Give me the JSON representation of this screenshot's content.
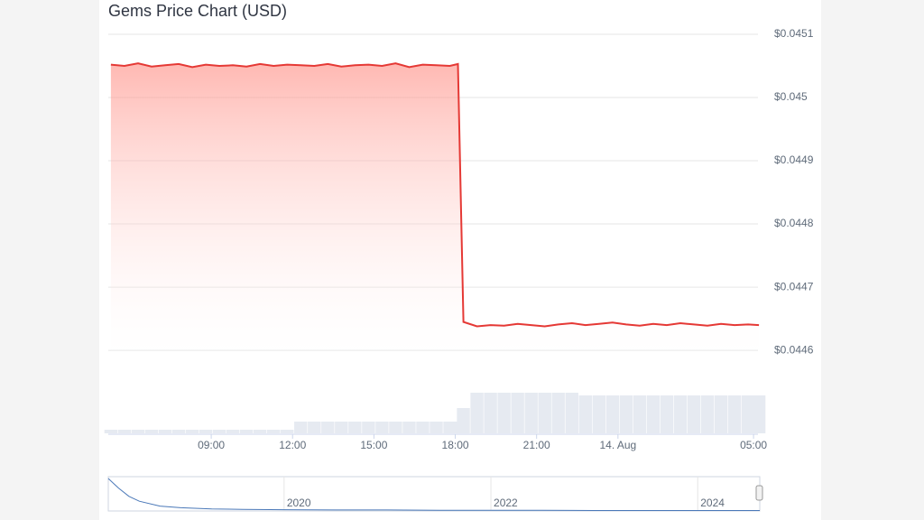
{
  "chart_data": {
    "type": "area",
    "title": "Gems Price Chart (USD)",
    "color": "#e53935",
    "x": [
      5.3,
      5.8,
      6.3,
      6.8,
      7.3,
      7.8,
      8.3,
      8.8,
      9.3,
      9.8,
      10.3,
      10.8,
      11.3,
      11.8,
      12.3,
      12.8,
      13.3,
      13.8,
      14.3,
      14.8,
      15.3,
      15.8,
      16.3,
      16.8,
      17.3,
      17.8,
      18.1,
      18.3,
      18.8,
      19.3,
      19.8,
      20.3,
      20.8,
      21.3,
      21.8,
      22.3,
      22.8,
      23.3,
      23.8,
      24.3,
      24.8,
      25.3,
      25.8,
      26.3,
      26.8,
      27.3,
      27.8,
      28.3,
      28.8,
      29.2
    ],
    "values": [
      0.045052,
      0.04505,
      0.045054,
      0.045049,
      0.045051,
      0.045053,
      0.045048,
      0.045052,
      0.04505,
      0.045051,
      0.045049,
      0.045053,
      0.04505,
      0.045052,
      0.045051,
      0.04505,
      0.045053,
      0.045049,
      0.045051,
      0.045052,
      0.04505,
      0.045054,
      0.045048,
      0.045052,
      0.045051,
      0.04505,
      0.045053,
      0.044645,
      0.044638,
      0.04464,
      0.044639,
      0.044642,
      0.04464,
      0.044638,
      0.044641,
      0.044643,
      0.04464,
      0.044642,
      0.044644,
      0.044641,
      0.044639,
      0.044642,
      0.04464,
      0.044643,
      0.044641,
      0.044639,
      0.044642,
      0.04464,
      0.044641,
      0.04464
    ],
    "ylim": [
      0.044593,
      0.0451
    ],
    "yticks": [
      {
        "value": 0.0451,
        "label": "$0.0451"
      },
      {
        "value": 0.045,
        "label": "$0.045"
      },
      {
        "value": 0.0449,
        "label": "$0.0449"
      },
      {
        "value": 0.0448,
        "label": "$0.0448"
      },
      {
        "value": 0.0447,
        "label": "$0.0447"
      },
      {
        "value": 0.0446,
        "label": "$0.0446"
      }
    ],
    "xlim": [
      5.27,
      29.23
    ],
    "xticks": [
      {
        "value": 9,
        "label": "09:00"
      },
      {
        "value": 12,
        "label": "12:00"
      },
      {
        "value": 15,
        "label": "15:00"
      },
      {
        "value": 18,
        "label": "18:00"
      },
      {
        "value": 21,
        "label": "21:00"
      },
      {
        "value": 24,
        "label": "14. Aug"
      },
      {
        "value": 29,
        "label": "05:00"
      }
    ],
    "grid": true,
    "volume": {
      "color": "#e6eaf1",
      "values": [
        4,
        4,
        4,
        4,
        4,
        4,
        4,
        4,
        4,
        4,
        4,
        4,
        4,
        4,
        13,
        13,
        13,
        13,
        13,
        13,
        13,
        13,
        13,
        13,
        13,
        13,
        13,
        28,
        45,
        45,
        45,
        45,
        45,
        45,
        45,
        45,
        42,
        42,
        42,
        42,
        42,
        42,
        42,
        42,
        42,
        42,
        42,
        42,
        42,
        42
      ]
    },
    "navigator": {
      "color": "#4a78b8",
      "x": [
        2018.3,
        2018.4,
        2018.5,
        2018.6,
        2018.8,
        2019.0,
        2019.3,
        2019.6,
        2020,
        2020.5,
        2021,
        2021.5,
        2022,
        2022.5,
        2023,
        2023.5,
        2024,
        2024.6
      ],
      "values": [
        1.0,
        0.7,
        0.45,
        0.3,
        0.15,
        0.1,
        0.06,
        0.05,
        0.04,
        0.03,
        0.03,
        0.02,
        0.02,
        0.02,
        0.015,
        0.015,
        0.015,
        0.015
      ],
      "xlim": [
        2018.3,
        2024.6
      ],
      "xticks": [
        2020,
        2022,
        2024
      ]
    }
  }
}
